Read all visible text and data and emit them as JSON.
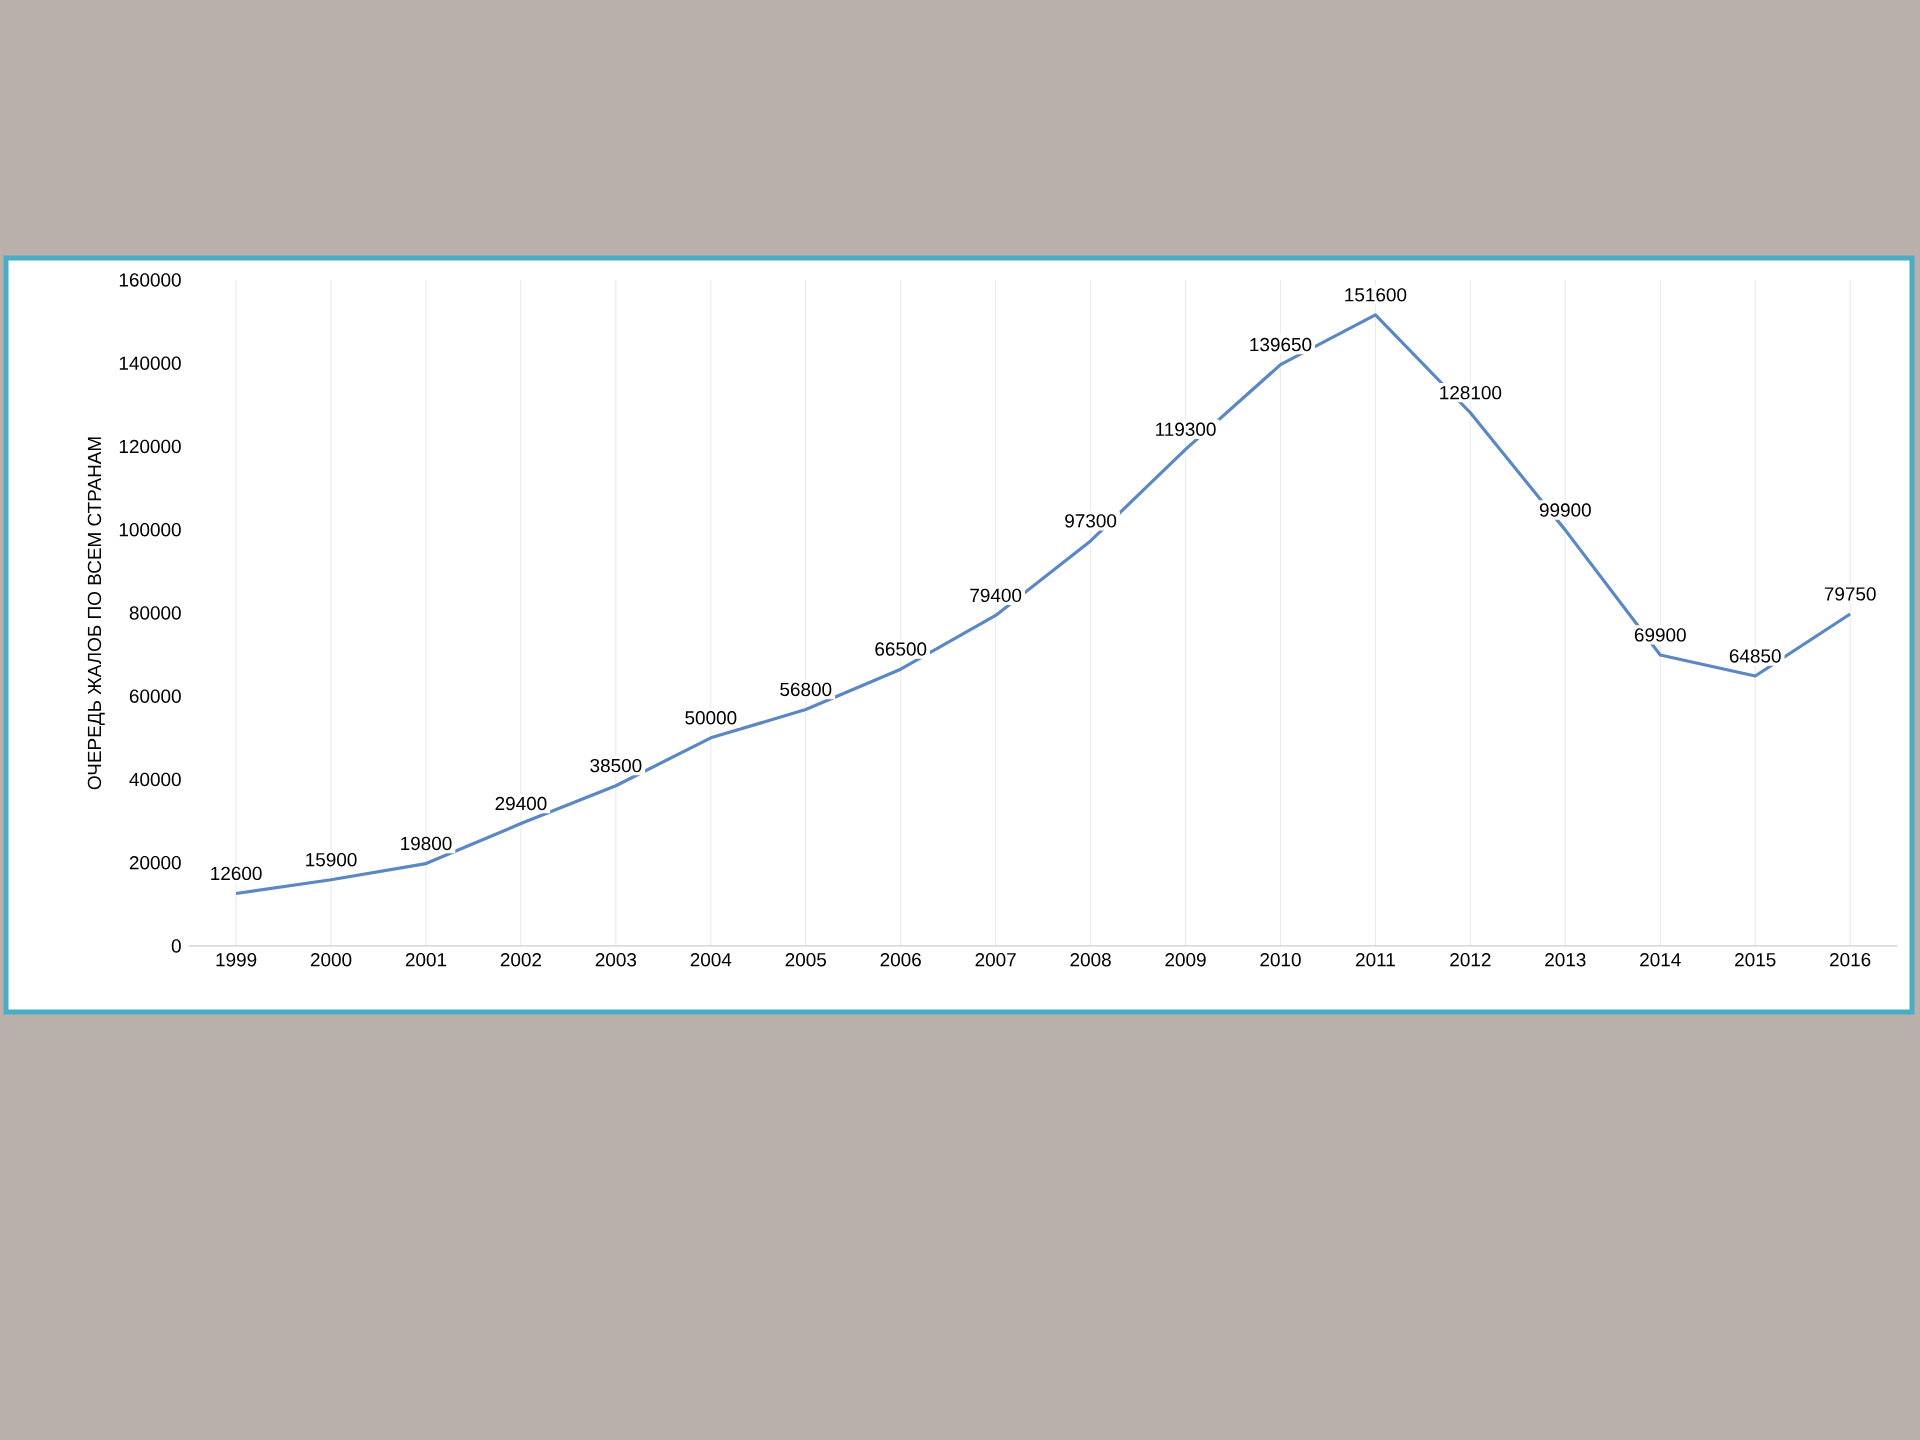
{
  "chart_data": {
    "type": "line",
    "ylabel": "ОЧЕРЕДЬ ЖАЛОБ ПО ВСЕМ СТРАНАМ",
    "categories": [
      "1999",
      "2000",
      "2001",
      "2002",
      "2003",
      "2004",
      "2005",
      "2006",
      "2007",
      "2008",
      "2009",
      "2010",
      "2011",
      "2012",
      "2013",
      "2014",
      "2015",
      "2016"
    ],
    "values": [
      12600,
      15900,
      19800,
      29400,
      38500,
      50000,
      56800,
      66500,
      79400,
      97300,
      119300,
      139650,
      151600,
      128100,
      99900,
      69900,
      64850,
      79750
    ],
    "color": "#5b87c5",
    "ylim": [
      0,
      160000
    ],
    "yticks": [
      0,
      20000,
      40000,
      60000,
      80000,
      100000,
      120000,
      140000,
      160000
    ],
    "grid": "x",
    "data_labels": true,
    "marker": "none",
    "line_style": "solid"
  }
}
